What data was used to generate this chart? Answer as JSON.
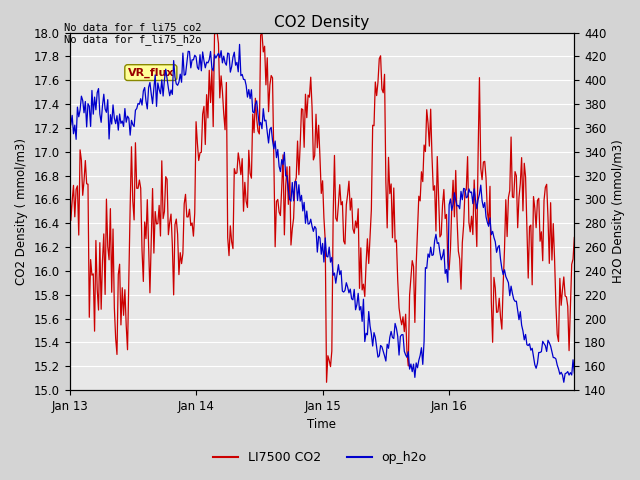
{
  "title": "CO2 Density",
  "xlabel": "Time",
  "ylabel_left": "CO2 Density ( mmol/m3)",
  "ylabel_right": "H2O Density (mmol/m3)",
  "ylim_left": [
    15.0,
    18.0
  ],
  "ylim_right": [
    140,
    440
  ],
  "annotation_text": "No data for f_li75_co2\nNo data for f_li75_h2o",
  "legend_label_co2": "LI7500 CO2",
  "legend_label_h2o": "op_h2o",
  "vr_flux_label": "VR_flux",
  "co2_color": "#cc0000",
  "h2o_color": "#0000cc",
  "plot_bg_color": "#e8e8e8",
  "fig_bg_color": "#d4d4d4",
  "grid_color": "#ffffff",
  "x_ticks": [
    "Jan 13",
    "Jan 14",
    "Jan 15",
    "Jan 16"
  ],
  "x_tick_positions": [
    0,
    96,
    192,
    288
  ],
  "total_points": 384
}
